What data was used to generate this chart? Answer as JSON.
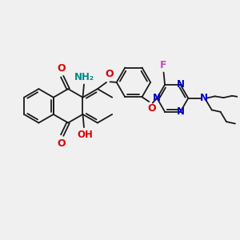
{
  "bg_color": "#f0f0f0",
  "bond_color": "#1a1a1a",
  "line_width": 1.3,
  "figsize": [
    3.0,
    3.0
  ],
  "dpi": 100,
  "atom_colors": {
    "O": "#dd0000",
    "N": "#0000cc",
    "NH2": "#008888",
    "F": "#cc44cc",
    "C": "#1a1a1a",
    "OH": "#dd0000"
  },
  "xlim": [
    0,
    10
  ],
  "ylim": [
    0,
    10
  ]
}
